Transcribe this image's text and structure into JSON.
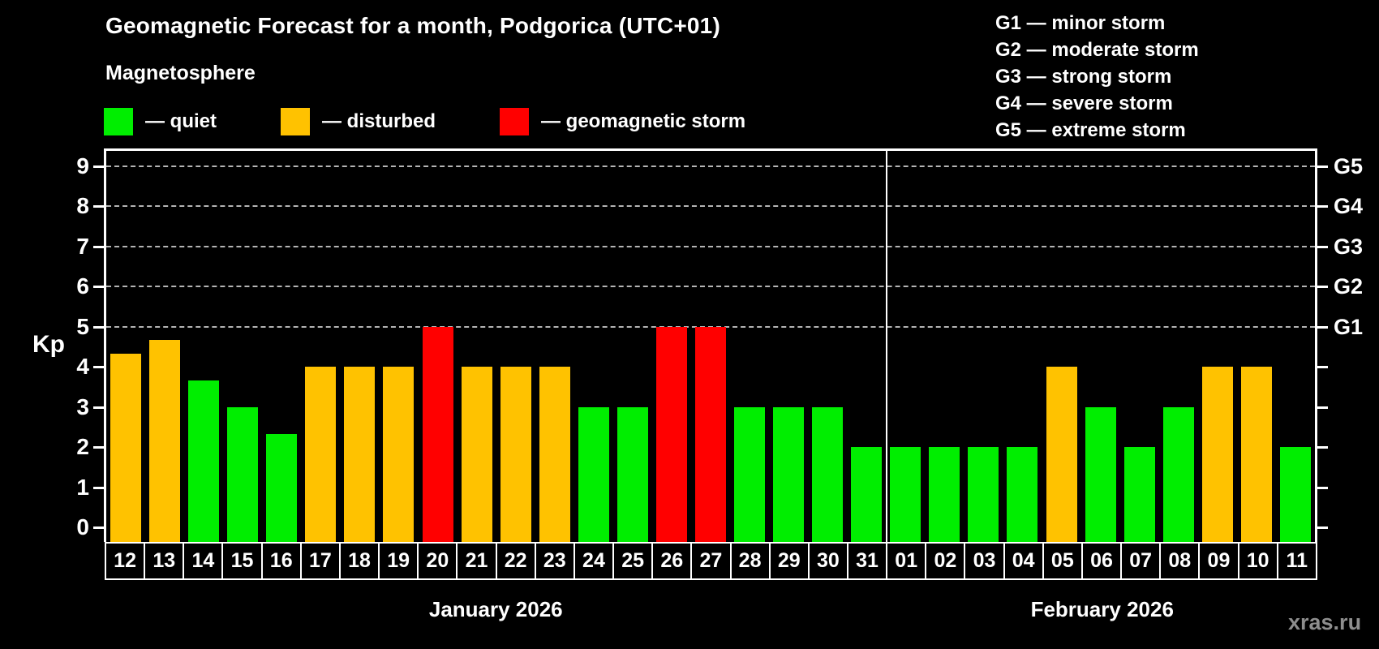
{
  "title": "Geomagnetic Forecast for a month, Podgorica (UTC+01)",
  "subtitle": "Magnetosphere",
  "watermark": "xras.ru",
  "colors": {
    "quiet": "#00ee00",
    "disturbed": "#ffc200",
    "storm": "#ff0000",
    "grid": "#b4b4b4",
    "axis": "#ffffff"
  },
  "legend": {
    "items": [
      {
        "key": "quiet",
        "label": "— quiet"
      },
      {
        "key": "disturbed",
        "label": "— disturbed"
      },
      {
        "key": "storm",
        "label": "— geomagnetic storm"
      }
    ]
  },
  "g_legend": [
    "G1 — minor storm",
    "G2 — moderate storm",
    "G3 — strong storm",
    "G4 — severe storm",
    "G5 — extreme storm"
  ],
  "axis": {
    "kp_label": "Kp",
    "kp_ticks": [
      0,
      1,
      2,
      3,
      4,
      5,
      6,
      7,
      8,
      9
    ],
    "g_scale": [
      {
        "label": "G1",
        "kp": 5
      },
      {
        "label": "G2",
        "kp": 6
      },
      {
        "label": "G3",
        "kp": 7
      },
      {
        "label": "G4",
        "kp": 8
      },
      {
        "label": "G5",
        "kp": 9
      }
    ]
  },
  "chart_data": {
    "type": "bar",
    "title": "Geomagnetic Forecast for a month, Podgorica (UTC+01)",
    "xlabel": "",
    "ylabel": "Kp",
    "ylim": [
      0,
      9
    ],
    "grid": "dashed horizontal at Kp 5-9",
    "gridlines_kp": [
      5,
      6,
      7,
      8,
      9
    ],
    "categories": [
      "12",
      "13",
      "14",
      "15",
      "16",
      "17",
      "18",
      "19",
      "20",
      "21",
      "22",
      "23",
      "24",
      "25",
      "26",
      "27",
      "28",
      "29",
      "30",
      "31",
      "01",
      "02",
      "03",
      "04",
      "05",
      "06",
      "07",
      "08",
      "09",
      "10",
      "11"
    ],
    "values": [
      4.33,
      4.67,
      3.67,
      3,
      2.33,
      4,
      4,
      4,
      5,
      4,
      4,
      4,
      3,
      3,
      5,
      5,
      3,
      3,
      3,
      2,
      2,
      2,
      2,
      2,
      4,
      3,
      2,
      3,
      4,
      4,
      2
    ],
    "status": [
      "disturbed",
      "disturbed",
      "quiet",
      "quiet",
      "quiet",
      "disturbed",
      "disturbed",
      "disturbed",
      "storm",
      "disturbed",
      "disturbed",
      "disturbed",
      "quiet",
      "quiet",
      "storm",
      "storm",
      "quiet",
      "quiet",
      "quiet",
      "quiet",
      "quiet",
      "quiet",
      "quiet",
      "quiet",
      "disturbed",
      "quiet",
      "quiet",
      "quiet",
      "disturbed",
      "disturbed",
      "quiet"
    ],
    "months": [
      {
        "label": "January 2026",
        "days": 20
      },
      {
        "label": "February 2026",
        "days": 11
      }
    ]
  }
}
